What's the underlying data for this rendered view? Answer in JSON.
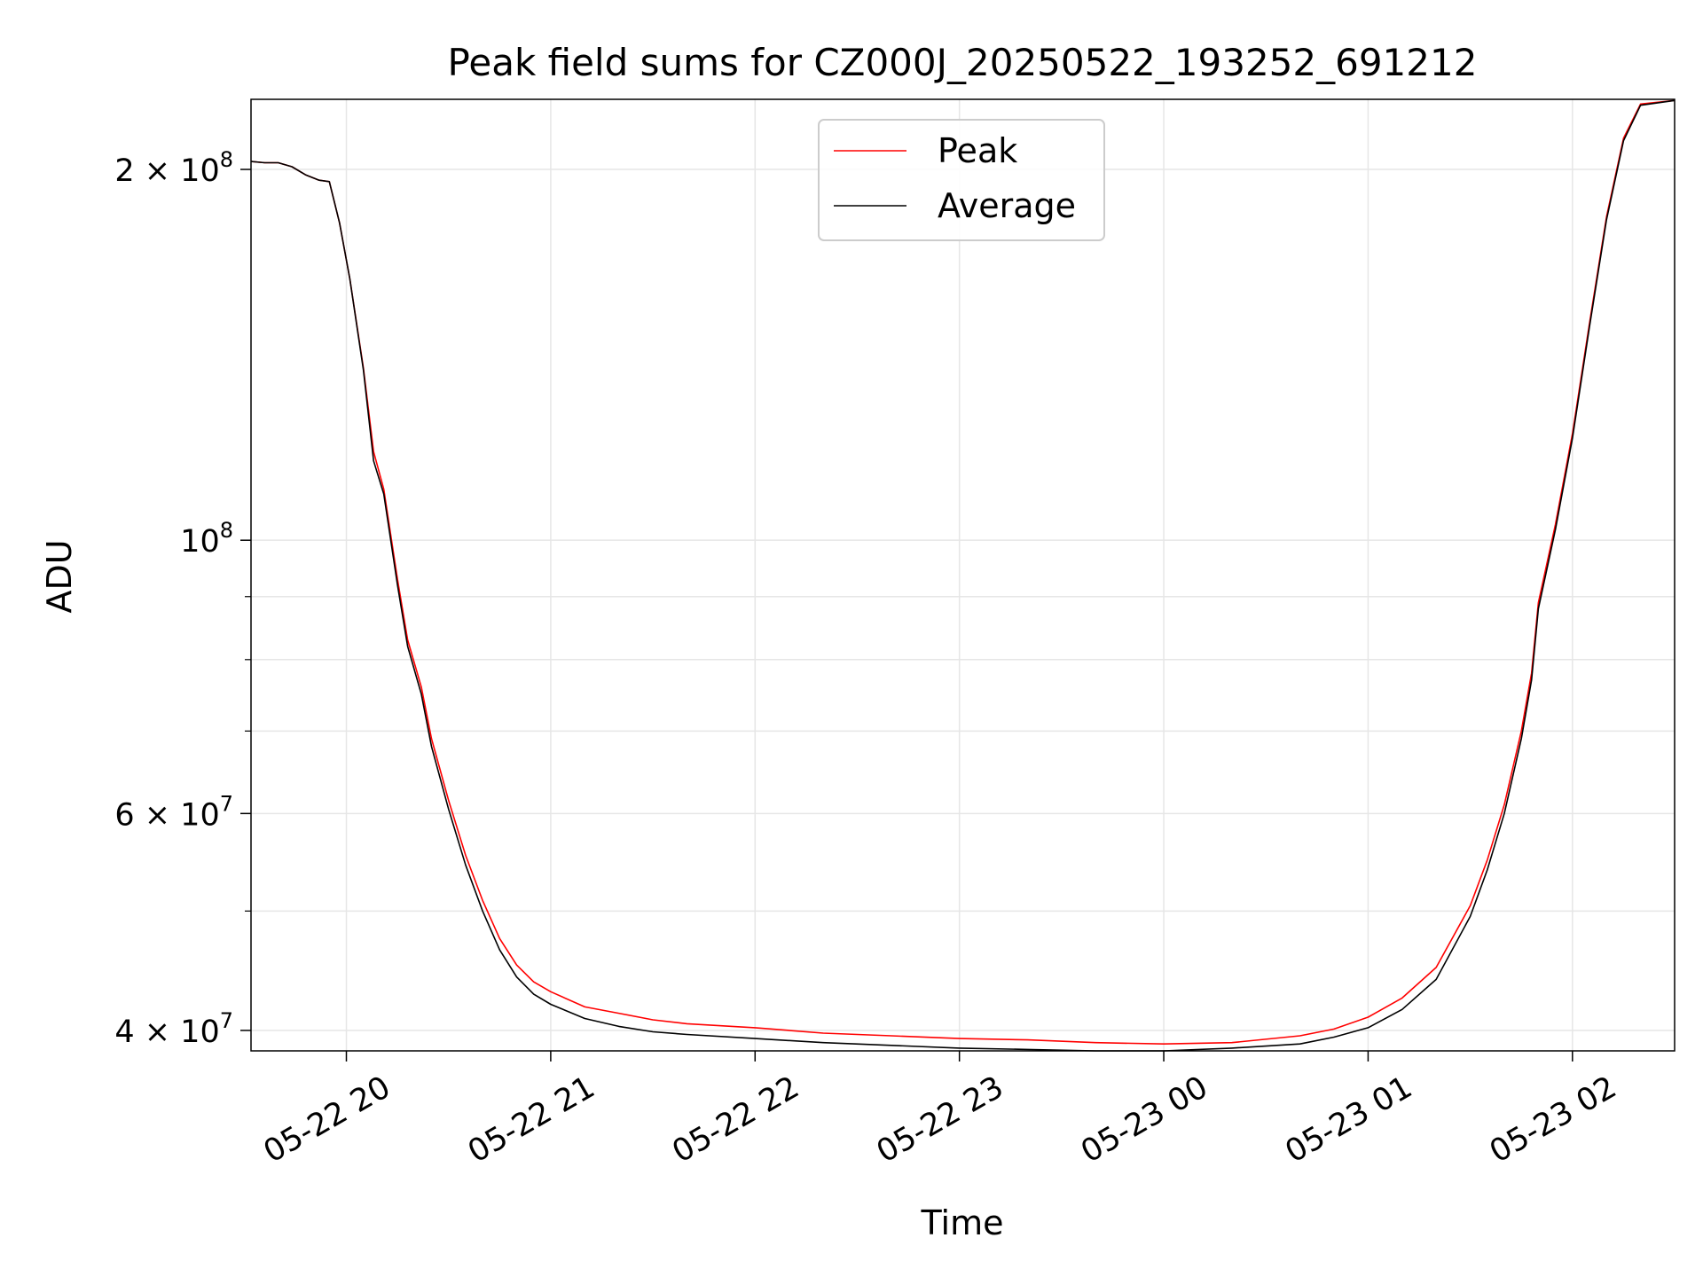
{
  "chart_data": {
    "type": "line",
    "title": "Peak field sums for CZ000J_20250522_193252_691212",
    "xlabel": "Time",
    "ylabel": "ADU",
    "yscale": "log",
    "ylim": [
      38500000,
      228000000
    ],
    "xlim": [
      "2025-05-22 19:32",
      "2025-05-23 02:30"
    ],
    "grid": true,
    "legend_position": "top-center",
    "x_ticks": [
      {
        "t": "2025-05-22 20:00",
        "label": "05-22 20"
      },
      {
        "t": "2025-05-22 21:00",
        "label": "05-22 21"
      },
      {
        "t": "2025-05-22 22:00",
        "label": "05-22 22"
      },
      {
        "t": "2025-05-22 23:00",
        "label": "05-22 23"
      },
      {
        "t": "2025-05-23 00:00",
        "label": "05-23 00"
      },
      {
        "t": "2025-05-23 01:00",
        "label": "05-23 01"
      },
      {
        "t": "2025-05-23 02:00",
        "label": "05-23 02"
      }
    ],
    "y_ticks": [
      {
        "value": 40000000,
        "label_base": "4 × 10",
        "label_exp": "7"
      },
      {
        "value": 60000000,
        "label_base": "6 × 10",
        "label_exp": "7"
      },
      {
        "value": 100000000,
        "label_base": "10",
        "label_exp": "8"
      },
      {
        "value": 200000000,
        "label_base": "2 × 10",
        "label_exp": "8"
      }
    ],
    "y_minor_ticks": [
      50000000,
      70000000,
      80000000,
      90000000
    ],
    "series": [
      {
        "name": "Peak",
        "color": "#ff0000",
        "x": [
          "2025-05-22 19:32",
          "2025-05-22 19:36",
          "2025-05-22 19:40",
          "2025-05-22 19:44",
          "2025-05-22 19:48",
          "2025-05-22 19:52",
          "2025-05-22 19:55",
          "2025-05-22 19:58",
          "2025-05-22 20:01",
          "2025-05-22 20:05",
          "2025-05-22 20:08",
          "2025-05-22 20:11",
          "2025-05-22 20:15",
          "2025-05-22 20:18",
          "2025-05-22 20:22",
          "2025-05-22 20:25",
          "2025-05-22 20:30",
          "2025-05-22 20:35",
          "2025-05-22 20:40",
          "2025-05-22 20:45",
          "2025-05-22 20:50",
          "2025-05-22 20:55",
          "2025-05-22 21:00",
          "2025-05-22 21:10",
          "2025-05-22 21:20",
          "2025-05-22 21:30",
          "2025-05-22 21:40",
          "2025-05-22 22:00",
          "2025-05-22 22:20",
          "2025-05-22 22:40",
          "2025-05-22 23:00",
          "2025-05-22 23:20",
          "2025-05-22 23:40",
          "2025-05-23 00:00",
          "2025-05-23 00:20",
          "2025-05-23 00:40",
          "2025-05-23 00:50",
          "2025-05-23 01:00",
          "2025-05-23 01:10",
          "2025-05-23 01:20",
          "2025-05-23 01:30",
          "2025-05-23 01:35",
          "2025-05-23 01:40",
          "2025-05-23 01:45",
          "2025-05-23 01:48",
          "2025-05-23 01:50",
          "2025-05-23 01:55",
          "2025-05-23 02:00",
          "2025-05-23 02:05",
          "2025-05-23 02:10",
          "2025-05-23 02:15",
          "2025-05-23 02:20",
          "2025-05-23 02:30"
        ],
        "y": [
          203000000,
          202500000,
          202500000,
          201000000,
          198000000,
          196000000,
          195500000,
          181000000,
          163000000,
          138000000,
          118000000,
          110000000,
          93000000,
          83000000,
          76000000,
          69000000,
          61500000,
          55500000,
          51000000,
          47500000,
          45200000,
          43800000,
          43000000,
          41800000,
          41300000,
          40800000,
          40500000,
          40200000,
          39800000,
          39600000,
          39400000,
          39300000,
          39100000,
          39000000,
          39100000,
          39600000,
          40100000,
          41000000,
          42500000,
          45000000,
          50500000,
          55000000,
          61000000,
          70000000,
          78000000,
          89000000,
          103000000,
          122000000,
          150000000,
          183000000,
          212000000,
          226000000,
          227500000
        ]
      },
      {
        "name": "Average",
        "color": "#000000",
        "x": [
          "2025-05-22 19:32",
          "2025-05-22 19:36",
          "2025-05-22 19:40",
          "2025-05-22 19:44",
          "2025-05-22 19:48",
          "2025-05-22 19:52",
          "2025-05-22 19:55",
          "2025-05-22 19:58",
          "2025-05-22 20:01",
          "2025-05-22 20:05",
          "2025-05-22 20:08",
          "2025-05-22 20:11",
          "2025-05-22 20:15",
          "2025-05-22 20:18",
          "2025-05-22 20:22",
          "2025-05-22 20:25",
          "2025-05-22 20:30",
          "2025-05-22 20:35",
          "2025-05-22 20:40",
          "2025-05-22 20:45",
          "2025-05-22 20:50",
          "2025-05-22 20:55",
          "2025-05-22 21:00",
          "2025-05-22 21:10",
          "2025-05-22 21:20",
          "2025-05-22 21:30",
          "2025-05-22 21:40",
          "2025-05-22 22:00",
          "2025-05-22 22:20",
          "2025-05-22 22:40",
          "2025-05-22 23:00",
          "2025-05-22 23:20",
          "2025-05-22 23:40",
          "2025-05-23 00:00",
          "2025-05-23 00:20",
          "2025-05-23 00:40",
          "2025-05-23 00:50",
          "2025-05-23 01:00",
          "2025-05-23 01:10",
          "2025-05-23 01:20",
          "2025-05-23 01:30",
          "2025-05-23 01:35",
          "2025-05-23 01:40",
          "2025-05-23 01:45",
          "2025-05-23 01:48",
          "2025-05-23 01:50",
          "2025-05-23 01:55",
          "2025-05-23 02:00",
          "2025-05-23 02:05",
          "2025-05-23 02:10",
          "2025-05-23 02:15",
          "2025-05-23 02:20",
          "2025-05-23 02:30"
        ],
        "y": [
          203000000,
          202500000,
          202500000,
          201000000,
          198000000,
          196000000,
          195500000,
          181000000,
          163000000,
          137500000,
          116000000,
          109000000,
          92000000,
          82000000,
          75000000,
          68000000,
          60500000,
          54500000,
          50000000,
          46500000,
          44200000,
          42800000,
          42000000,
          40900000,
          40300000,
          39900000,
          39700000,
          39400000,
          39100000,
          38900000,
          38700000,
          38600000,
          38500000,
          38500000,
          38700000,
          39000000,
          39500000,
          40200000,
          41600000,
          44000000,
          49500000,
          54000000,
          60000000,
          69000000,
          77000000,
          88000000,
          102000000,
          121000000,
          149000000,
          182000000,
          211000000,
          225500000,
          227500000
        ]
      }
    ]
  }
}
